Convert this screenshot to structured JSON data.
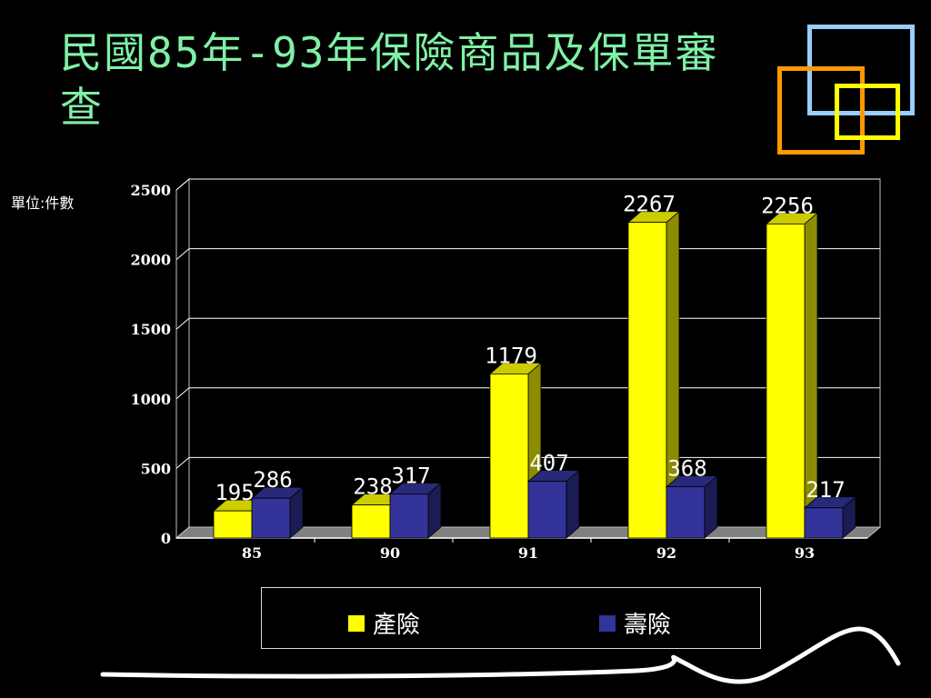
{
  "title": "民國85年-93年保險商品及保單審查",
  "unit_label": "單位:件數",
  "colors": {
    "background": "#000000",
    "title": "#7ff0a6",
    "series_property": "#ffff00",
    "series_life": "#333399",
    "deco_blue": "#99ccff",
    "deco_orange": "#ff9900",
    "deco_yellow": "#ffff00"
  },
  "chart_data": {
    "type": "bar",
    "categories": [
      "85",
      "90",
      "91",
      "92",
      "93"
    ],
    "series": [
      {
        "name": "產險",
        "values": [
          195,
          238,
          1179,
          2267,
          2256
        ]
      },
      {
        "name": "壽險",
        "values": [
          286,
          317,
          407,
          368,
          217
        ]
      }
    ],
    "title": "",
    "xlabel": "",
    "ylabel": "單位:件數",
    "ylim": [
      0,
      2500
    ],
    "yticks": [
      0,
      500,
      1000,
      1500,
      2000,
      2500
    ],
    "grid": true,
    "legend_position": "bottom"
  }
}
